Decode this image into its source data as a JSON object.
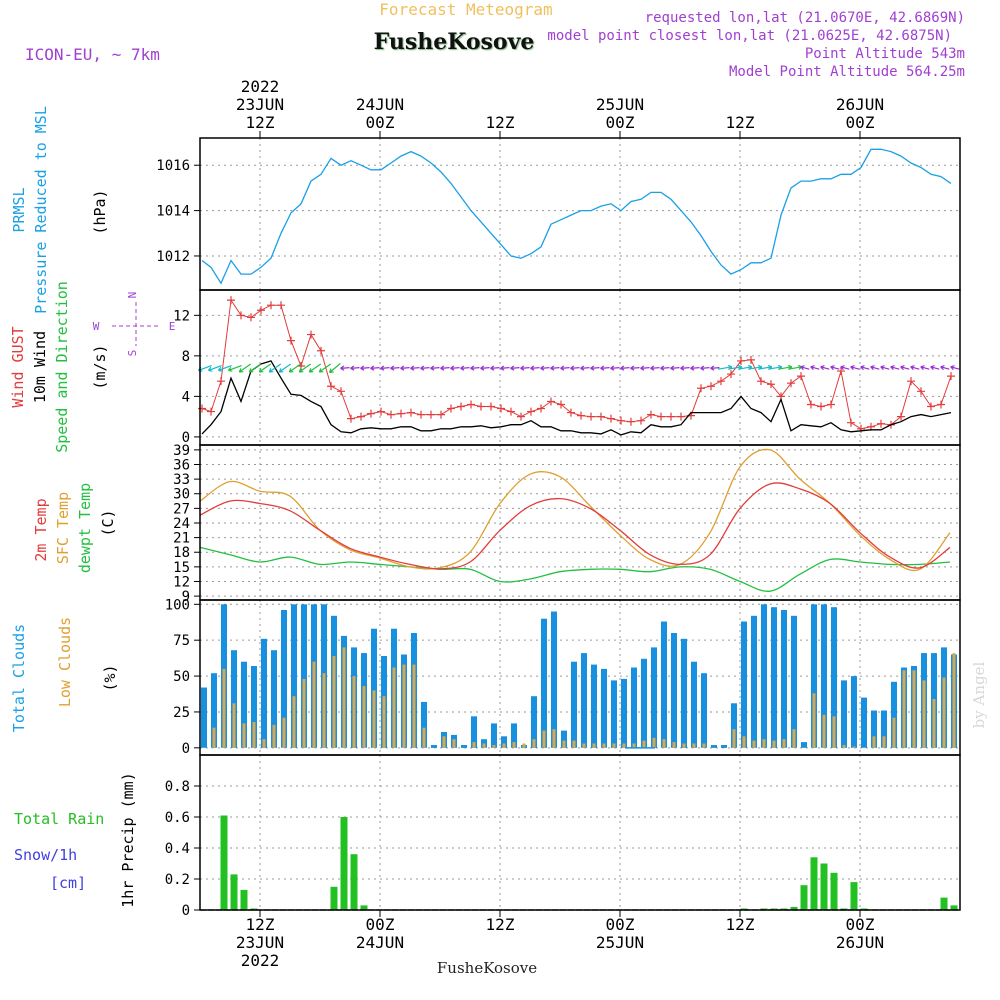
{
  "header": {
    "title": "Forecast Meteogram",
    "location": "FusheKosove",
    "model": "ICON-EU, ~ 7km",
    "requested": "requested lon,lat (21.0670E, 42.6869N)",
    "closest": "model point closest lon,lat (21.0625E, 42.6875N)",
    "point_altitude": "Point Altitude 543m",
    "model_altitude": "Model Point Altitude 564.25m"
  },
  "footer": {
    "location": "FusheKosove",
    "watermark": "by Angel"
  },
  "colors": {
    "pressure": "#19a0e6",
    "gust": "#e23c3c",
    "wind": "#000000",
    "dir_green": "#22c040",
    "dir_purple": "#9a2fd0",
    "dir_cyan": "#19b8c8",
    "dir_magenta": "#c020c0",
    "temp2m": "#e23c3c",
    "sfc": "#e0a030",
    "dewpt": "#22c040",
    "total_cloud": "#1890e0",
    "low_cloud": "#d8a850",
    "rain": "#22c022",
    "title": "#f0c060",
    "info": "#a040d0",
    "grid": "#9a9a9a",
    "snow_label": "#4040e0"
  },
  "time_axis": {
    "top_labels": [
      {
        "l1": "2022",
        "l2": "23JUN",
        "l3": "12Z",
        "h": 12
      },
      {
        "l1": "",
        "l2": "24JUN",
        "l3": "00Z",
        "h": 24
      },
      {
        "l1": "",
        "l2": "",
        "l3": "12Z",
        "h": 36
      },
      {
        "l1": "",
        "l2": "25JUN",
        "l3": "00Z",
        "h": 48
      },
      {
        "l1": "",
        "l2": "",
        "l3": "12Z",
        "h": 60
      },
      {
        "l1": "",
        "l2": "26JUN",
        "l3": "00Z",
        "h": 72
      }
    ],
    "bottom_labels": [
      {
        "l1": "12Z",
        "l2": "23JUN",
        "l3": "2022",
        "h": 12
      },
      {
        "l1": "00Z",
        "l2": "24JUN",
        "l3": "",
        "h": 24
      },
      {
        "l1": "12Z",
        "l2": "",
        "l3": "",
        "h": 36
      },
      {
        "l1": "00Z",
        "l2": "25JUN",
        "l3": "",
        "h": 48
      },
      {
        "l1": "12Z",
        "l2": "",
        "l3": "",
        "h": 60
      },
      {
        "l1": "00Z",
        "l2": "26JUN",
        "l3": "",
        "h": 72
      }
    ],
    "hour_start": 6,
    "hour_end": 82
  },
  "chart_data": [
    {
      "type": "line",
      "name": "pressure",
      "ylabel": [
        "PRMSL",
        "Pressure Reduced to MSL"
      ],
      "unit": "(hPa)",
      "ylim": [
        1010.5,
        1017.2
      ],
      "yticks": [
        1012,
        1014,
        1016
      ],
      "x": [
        6.2,
        7.1,
        8.1,
        9.1,
        10.1,
        11.1,
        12.1,
        13.1,
        14.1,
        15.1,
        16.1,
        17.1,
        18.1,
        19.1,
        20.1,
        21.1,
        22.1,
        23.1,
        24.1,
        25.1,
        26.1,
        27.1,
        28.1,
        29.1,
        30.1,
        31.1,
        32.1,
        33.1,
        34.1,
        35.1,
        36.1,
        37.1,
        38.1,
        39.1,
        40.1,
        41.1,
        42.1,
        43.1,
        44.1,
        45.1,
        46.1,
        47.1,
        48.1,
        49.1,
        50.1,
        51.1,
        52.1,
        53.1,
        54.1,
        55.1,
        56.1,
        57.1,
        58.1,
        59.1,
        60.1,
        61.1,
        62.1,
        63.1,
        64.1,
        65.1,
        66.1,
        67.1,
        68.1,
        69.1,
        70.1,
        71.1,
        72.1,
        73.1,
        74.1,
        75.1,
        76.1,
        77.1,
        78.1,
        79.1,
        80.1,
        81.1
      ],
      "values": [
        1011.8,
        1011.5,
        1010.8,
        1011.8,
        1011.2,
        1011.2,
        1011.5,
        1011.9,
        1013.0,
        1013.9,
        1014.3,
        1015.3,
        1015.6,
        1016.3,
        1016.0,
        1016.2,
        1016.0,
        1015.8,
        1015.8,
        1016.1,
        1016.4,
        1016.6,
        1016.4,
        1016.1,
        1015.7,
        1015.2,
        1014.6,
        1014.0,
        1013.5,
        1013.0,
        1012.5,
        1012.0,
        1011.9,
        1012.1,
        1012.4,
        1013.4,
        1013.6,
        1013.8,
        1014.0,
        1014.0,
        1014.2,
        1014.3,
        1014.0,
        1014.4,
        1014.5,
        1014.8,
        1014.8,
        1014.5,
        1014.0,
        1013.5,
        1012.9,
        1012.2,
        1011.6,
        1011.2,
        1011.4,
        1011.7,
        1011.7,
        1011.9,
        1013.8,
        1015.0,
        1015.3,
        1015.3,
        1015.4,
        1015.4,
        1015.6,
        1015.6,
        1015.9,
        1016.7,
        1016.7,
        1016.6,
        1016.4,
        1016.1,
        1015.9,
        1015.6,
        1015.5,
        1015.2
      ]
    },
    {
      "type": "line",
      "name": "wind",
      "ylabel": [
        "Wind GUST",
        "10m Wind",
        "Speed and Direction"
      ],
      "unit": "(m/s)",
      "ylim": [
        -0.8,
        14.5
      ],
      "yticks": [
        0,
        4,
        8,
        12
      ],
      "compass": {
        "n": "N",
        "s": "S",
        "w": "W",
        "e": "E"
      },
      "x": [
        6.2,
        7.1,
        8.1,
        9.1,
        10.1,
        11.1,
        12.1,
        13.1,
        14.1,
        15.1,
        16.1,
        17.1,
        18.1,
        19.1,
        20.1,
        21.1,
        22.1,
        23.1,
        24.1,
        25.1,
        26.1,
        27.1,
        28.1,
        29.1,
        30.1,
        31.1,
        32.1,
        33.1,
        34.1,
        35.1,
        36.1,
        37.1,
        38.1,
        39.1,
        40.1,
        41.1,
        42.1,
        43.1,
        44.1,
        45.1,
        46.1,
        47.1,
        48.1,
        49.1,
        50.1,
        51.1,
        52.1,
        53.1,
        54.1,
        55.1,
        56.1,
        57.1,
        58.1,
        59.1,
        60.1,
        61.1,
        62.1,
        63.1,
        64.1,
        65.1,
        66.1,
        67.1,
        68.1,
        69.1,
        70.1,
        71.1,
        72.1,
        73.1,
        74.1,
        75.1,
        76.1,
        77.1,
        78.1,
        79.1,
        80.1,
        81.1
      ],
      "gust": [
        2.8,
        2.5,
        5.5,
        13.5,
        12.0,
        11.8,
        12.5,
        13.0,
        13.0,
        9.5,
        7.0,
        10.1,
        8.5,
        5.0,
        4.5,
        1.8,
        2.0,
        2.3,
        2.5,
        2.2,
        2.3,
        2.4,
        2.2,
        2.2,
        2.2,
        2.8,
        3.0,
        3.2,
        3.0,
        3.0,
        2.8,
        2.5,
        2.0,
        2.5,
        2.8,
        3.5,
        3.2,
        2.4,
        2.1,
        2.0,
        2.0,
        1.8,
        1.6,
        1.5,
        1.6,
        2.2,
        2.0,
        2.0,
        2.0,
        2.1,
        4.8,
        5.0,
        5.5,
        6.2,
        7.5,
        7.6,
        5.5,
        5.2,
        4.0,
        5.3,
        6.0,
        3.2,
        3.0,
        3.2,
        6.5,
        1.4,
        0.8,
        1.0,
        1.3,
        1.2,
        2.0,
        5.5,
        4.5,
        3.0,
        3.2,
        6.0
      ],
      "speed": [
        0.3,
        1.2,
        2.5,
        5.8,
        3.5,
        6.5,
        7.2,
        7.5,
        5.8,
        4.2,
        4.1,
        3.5,
        3.0,
        1.2,
        0.5,
        0.4,
        0.8,
        0.9,
        0.8,
        0.8,
        1.0,
        1.0,
        0.6,
        0.6,
        0.8,
        0.8,
        1.0,
        1.0,
        1.1,
        0.9,
        1.0,
        1.2,
        1.2,
        1.6,
        1.0,
        1.0,
        0.6,
        0.6,
        0.4,
        0.4,
        0.3,
        0.7,
        0.2,
        0.5,
        0.4,
        1.2,
        1.0,
        1.0,
        1.2,
        2.4,
        2.4,
        2.4,
        2.4,
        2.8,
        4.0,
        2.8,
        2.4,
        1.5,
        3.7,
        0.6,
        1.2,
        1.1,
        1.0,
        1.4,
        0.7,
        0.5,
        0.6,
        0.7,
        0.7,
        1.2,
        1.5,
        2.0,
        2.2,
        2.0,
        2.2,
        2.4
      ]
    },
    {
      "type": "line",
      "name": "temperature",
      "ylabel": [
        "2m Temp",
        "SFC Temp",
        "dewpt Temp"
      ],
      "unit": "(C)",
      "ylim": [
        8.2,
        40
      ],
      "yticks": [
        9,
        12,
        15,
        18,
        21,
        24,
        27,
        30,
        33,
        36,
        39
      ],
      "x": [
        6,
        9,
        12,
        15,
        18,
        21,
        24,
        27,
        30,
        33,
        36,
        39,
        42,
        45,
        48,
        51,
        54,
        57,
        60,
        63,
        66,
        69,
        72,
        75,
        78,
        81
      ],
      "t2m": [
        25.6,
        28.5,
        28.0,
        26.5,
        22.5,
        18.8,
        17.0,
        15.5,
        14.6,
        16.0,
        22.5,
        27.5,
        29.0,
        27.0,
        22.5,
        17.5,
        15.5,
        17.5,
        27.0,
        32.0,
        31.0,
        28.0,
        22.0,
        17.0,
        14.8,
        19.0
      ],
      "sfc": [
        28.5,
        32.5,
        30.5,
        29.5,
        22.5,
        18.5,
        16.8,
        15.0,
        14.8,
        18.0,
        28.0,
        34.0,
        33.5,
        27.5,
        21.5,
        16.5,
        15.5,
        22.0,
        35.5,
        39.0,
        33.0,
        28.0,
        21.5,
        16.5,
        14.5,
        22.0
      ],
      "dewpt": [
        19.0,
        17.5,
        16.0,
        17.0,
        15.5,
        16.0,
        15.5,
        15.0,
        14.5,
        14.5,
        12.0,
        12.5,
        14.0,
        14.5,
        14.5,
        14.0,
        15.0,
        14.5,
        12.0,
        10.0,
        13.5,
        16.5,
        16.0,
        15.5,
        15.5,
        16.0
      ]
    },
    {
      "type": "bar",
      "name": "clouds",
      "ylabel": [
        "Total Clouds",
        "Low Clouds"
      ],
      "unit": "(%)",
      "ylim": [
        -5,
        103
      ],
      "yticks": [
        0,
        25,
        50,
        75,
        100
      ],
      "x": [
        6,
        7,
        8,
        9,
        10,
        11,
        12,
        13,
        14,
        15,
        16,
        17,
        18,
        19,
        20,
        21,
        22,
        23,
        24,
        25,
        26,
        27,
        28,
        29,
        30,
        31,
        32,
        33,
        34,
        35,
        36,
        37,
        38,
        39,
        40,
        41,
        42,
        43,
        44,
        45,
        46,
        47,
        48,
        49,
        50,
        51,
        52,
        53,
        54,
        55,
        56,
        57,
        58,
        59,
        60,
        61,
        62,
        63,
        64,
        65,
        66,
        67,
        68,
        69,
        70,
        71,
        72,
        73,
        74,
        75,
        76,
        77,
        78,
        79,
        80,
        81
      ],
      "total": [
        42,
        52,
        100,
        68,
        60,
        57,
        76,
        68,
        96,
        100,
        100,
        100,
        100,
        92,
        78,
        70,
        66,
        83,
        64,
        83,
        65,
        80,
        32,
        2,
        11,
        9,
        2,
        22,
        6,
        17,
        8,
        17,
        2,
        36,
        90,
        95,
        12,
        60,
        66,
        58,
        55,
        47,
        48,
        56,
        62,
        70,
        88,
        80,
        76,
        60,
        52,
        2,
        2,
        31,
        88,
        92,
        100,
        98,
        96,
        92,
        4,
        100,
        100,
        98,
        47,
        50,
        35,
        26,
        26,
        46,
        56,
        57,
        66,
        66,
        70,
        65
      ],
      "low": [
        0,
        14,
        55,
        31,
        17,
        18,
        6,
        16,
        21,
        36,
        48,
        60,
        52,
        64,
        70,
        50,
        43,
        40,
        36,
        56,
        58,
        58,
        14,
        0,
        8,
        6,
        0,
        4,
        3,
        2,
        3,
        4,
        3,
        6,
        12,
        13,
        5,
        5,
        3,
        3,
        3,
        3,
        3,
        3,
        5,
        7,
        6,
        4,
        3,
        3,
        3,
        0,
        0,
        13,
        8,
        5,
        6,
        5,
        6,
        13,
        0,
        38,
        23,
        22,
        2,
        1,
        0,
        8,
        8,
        21,
        54,
        54,
        47,
        34,
        49,
        66
      ]
    },
    {
      "type": "bar",
      "name": "precipitation",
      "ylabel": [
        "Total Rain",
        "Snow/1h",
        "[cm]"
      ],
      "unit": "1hr Precip (mm)",
      "ylim": [
        0,
        1.0
      ],
      "yticks": [
        0,
        0.2,
        0.4,
        0.6,
        0.8
      ],
      "x": [
        8,
        9,
        10,
        11,
        19,
        20,
        21,
        22,
        60,
        62,
        63,
        64,
        65,
        66,
        67,
        68,
        69,
        70,
        71,
        72,
        80,
        81
      ],
      "values": [
        0.61,
        0.23,
        0.13,
        0.0,
        0.15,
        0.6,
        0.36,
        0.03,
        0.01,
        0.01,
        0.01,
        0.01,
        0.02,
        0.16,
        0.34,
        0.3,
        0.24,
        0.0,
        0.18,
        0.0,
        0.08,
        0.03
      ]
    }
  ]
}
